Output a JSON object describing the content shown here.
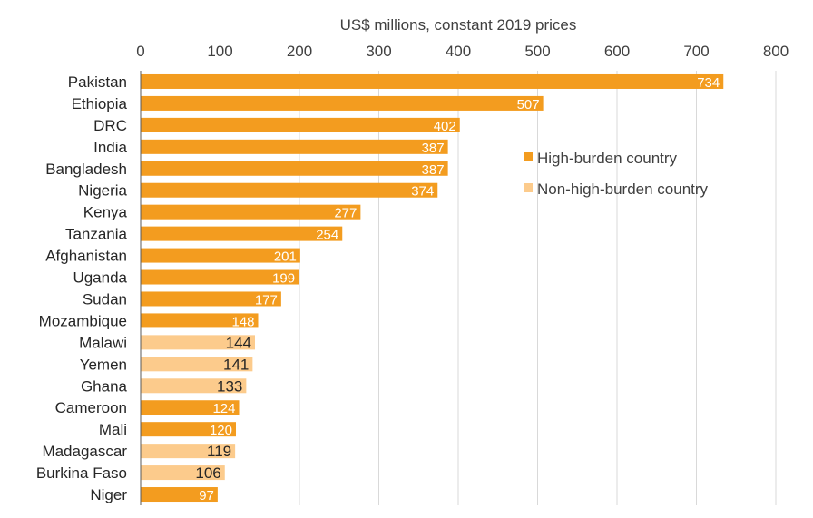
{
  "chart_data": {
    "type": "bar",
    "orientation": "horizontal",
    "xlabel": "US$ millions, constant 2019 prices",
    "xlim": [
      0,
      800
    ],
    "xticks": [
      0,
      100,
      200,
      300,
      400,
      500,
      600,
      700,
      800
    ],
    "grid": true,
    "legend_position": "right-middle",
    "legend": [
      {
        "key": "high",
        "label": "High-burden country",
        "color": "#F39C1F"
      },
      {
        "key": "non",
        "label": "Non-high-burden country",
        "color": "#FCCB8C"
      }
    ],
    "categories": [
      "Pakistan",
      "Ethiopia",
      "DRC",
      "India",
      "Bangladesh",
      "Nigeria",
      "Kenya",
      "Tanzania",
      "Afghanistan",
      "Uganda",
      "Sudan",
      "Mozambique",
      "Malawi",
      "Yemen",
      "Ghana",
      "Cameroon",
      "Mali",
      "Madagascar",
      "Burkina Faso",
      "Niger"
    ],
    "values": [
      734,
      507,
      402,
      387,
      387,
      374,
      277,
      254,
      201,
      199,
      177,
      148,
      144,
      141,
      133,
      124,
      120,
      119,
      106,
      97
    ],
    "groups": [
      "high",
      "high",
      "high",
      "high",
      "high",
      "high",
      "high",
      "high",
      "high",
      "high",
      "high",
      "high",
      "non",
      "non",
      "non",
      "high",
      "high",
      "non",
      "non",
      "high"
    ]
  }
}
